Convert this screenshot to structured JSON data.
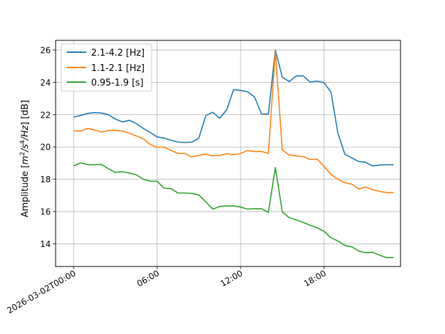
{
  "chart_data": {
    "type": "line",
    "xlabel": "",
    "ylabel": "Amplitude [m²/s⁴/Hz] [dB]",
    "ylabel_parts": {
      "prefix": "Amplitude [",
      "m": "m",
      "m_sup": "2",
      "s": "/s",
      "s_sup": "4",
      "hz": "/Hz",
      "suffix": "] [dB]"
    },
    "x_unit": "hours since 2026-03-02T00:00",
    "xlim": [
      -1.3,
      23.5
    ],
    "ylim": [
      12.6,
      26.6
    ],
    "grid": true,
    "legend_position": "top-left",
    "x_ticks": [
      {
        "value": 0,
        "label": "2026-03-02T00:00"
      },
      {
        "value": 6,
        "label": "06:00"
      },
      {
        "value": 12,
        "label": "12:00"
      },
      {
        "value": 18,
        "label": "18:00"
      }
    ],
    "y_ticks": [
      14,
      16,
      18,
      20,
      22,
      24,
      26
    ],
    "x": [
      0,
      0.5,
      1,
      1.5,
      2,
      2.5,
      3,
      3.5,
      4,
      4.5,
      5,
      5.5,
      6,
      6.5,
      7,
      7.5,
      8,
      8.5,
      9,
      9.5,
      10,
      10.5,
      11,
      11.5,
      12,
      12.5,
      13,
      13.5,
      14,
      14.5,
      15,
      15.5,
      16,
      16.5,
      17,
      17.5,
      18,
      18.5,
      19,
      19.5,
      20,
      20.5,
      21,
      21.5,
      22,
      22.5,
      23
    ],
    "series": [
      {
        "name": "2.1-4.2 [Hz]",
        "color": "#1f77b4",
        "values": [
          21.85,
          21.95,
          22.08,
          22.13,
          22.1,
          22.0,
          21.72,
          21.55,
          21.65,
          21.45,
          21.15,
          20.9,
          20.62,
          20.55,
          20.42,
          20.3,
          20.28,
          20.3,
          20.55,
          21.95,
          22.15,
          21.78,
          22.3,
          23.55,
          23.5,
          23.42,
          23.1,
          22.05,
          22.03,
          26.0,
          24.32,
          24.05,
          24.4,
          24.4,
          24.02,
          24.08,
          23.98,
          23.4,
          20.85,
          19.55,
          19.32,
          19.1,
          19.05,
          18.82,
          18.88,
          18.9,
          18.9
        ]
      },
      {
        "name": "1.1-2.1 [Hz]",
        "color": "#ff7f0e",
        "values": [
          21.0,
          20.98,
          21.15,
          21.05,
          20.92,
          21.02,
          21.03,
          20.98,
          20.85,
          20.68,
          20.5,
          20.15,
          19.97,
          20.0,
          19.78,
          19.6,
          19.6,
          19.38,
          19.48,
          19.55,
          19.45,
          19.48,
          19.58,
          19.52,
          19.6,
          19.78,
          19.72,
          19.72,
          19.6,
          25.95,
          19.82,
          19.5,
          19.45,
          19.4,
          19.22,
          19.25,
          18.8,
          18.3,
          18.0,
          17.78,
          17.7,
          17.4,
          17.52,
          17.35,
          17.25,
          17.18,
          17.18
        ]
      },
      {
        "name": "0.95-1.9 [s]",
        "color": "#2ca02c",
        "values": [
          18.83,
          19.02,
          18.9,
          18.9,
          18.92,
          18.65,
          18.42,
          18.47,
          18.38,
          18.28,
          18.0,
          17.88,
          17.88,
          17.45,
          17.42,
          17.15,
          17.15,
          17.12,
          17.03,
          16.6,
          16.15,
          16.32,
          16.35,
          16.35,
          16.28,
          16.15,
          16.18,
          16.18,
          15.95,
          18.73,
          15.98,
          15.62,
          15.48,
          15.33,
          15.15,
          15.0,
          14.78,
          14.38,
          14.18,
          13.9,
          13.82,
          13.55,
          13.45,
          13.48,
          13.3,
          13.15,
          13.15
        ]
      }
    ]
  }
}
